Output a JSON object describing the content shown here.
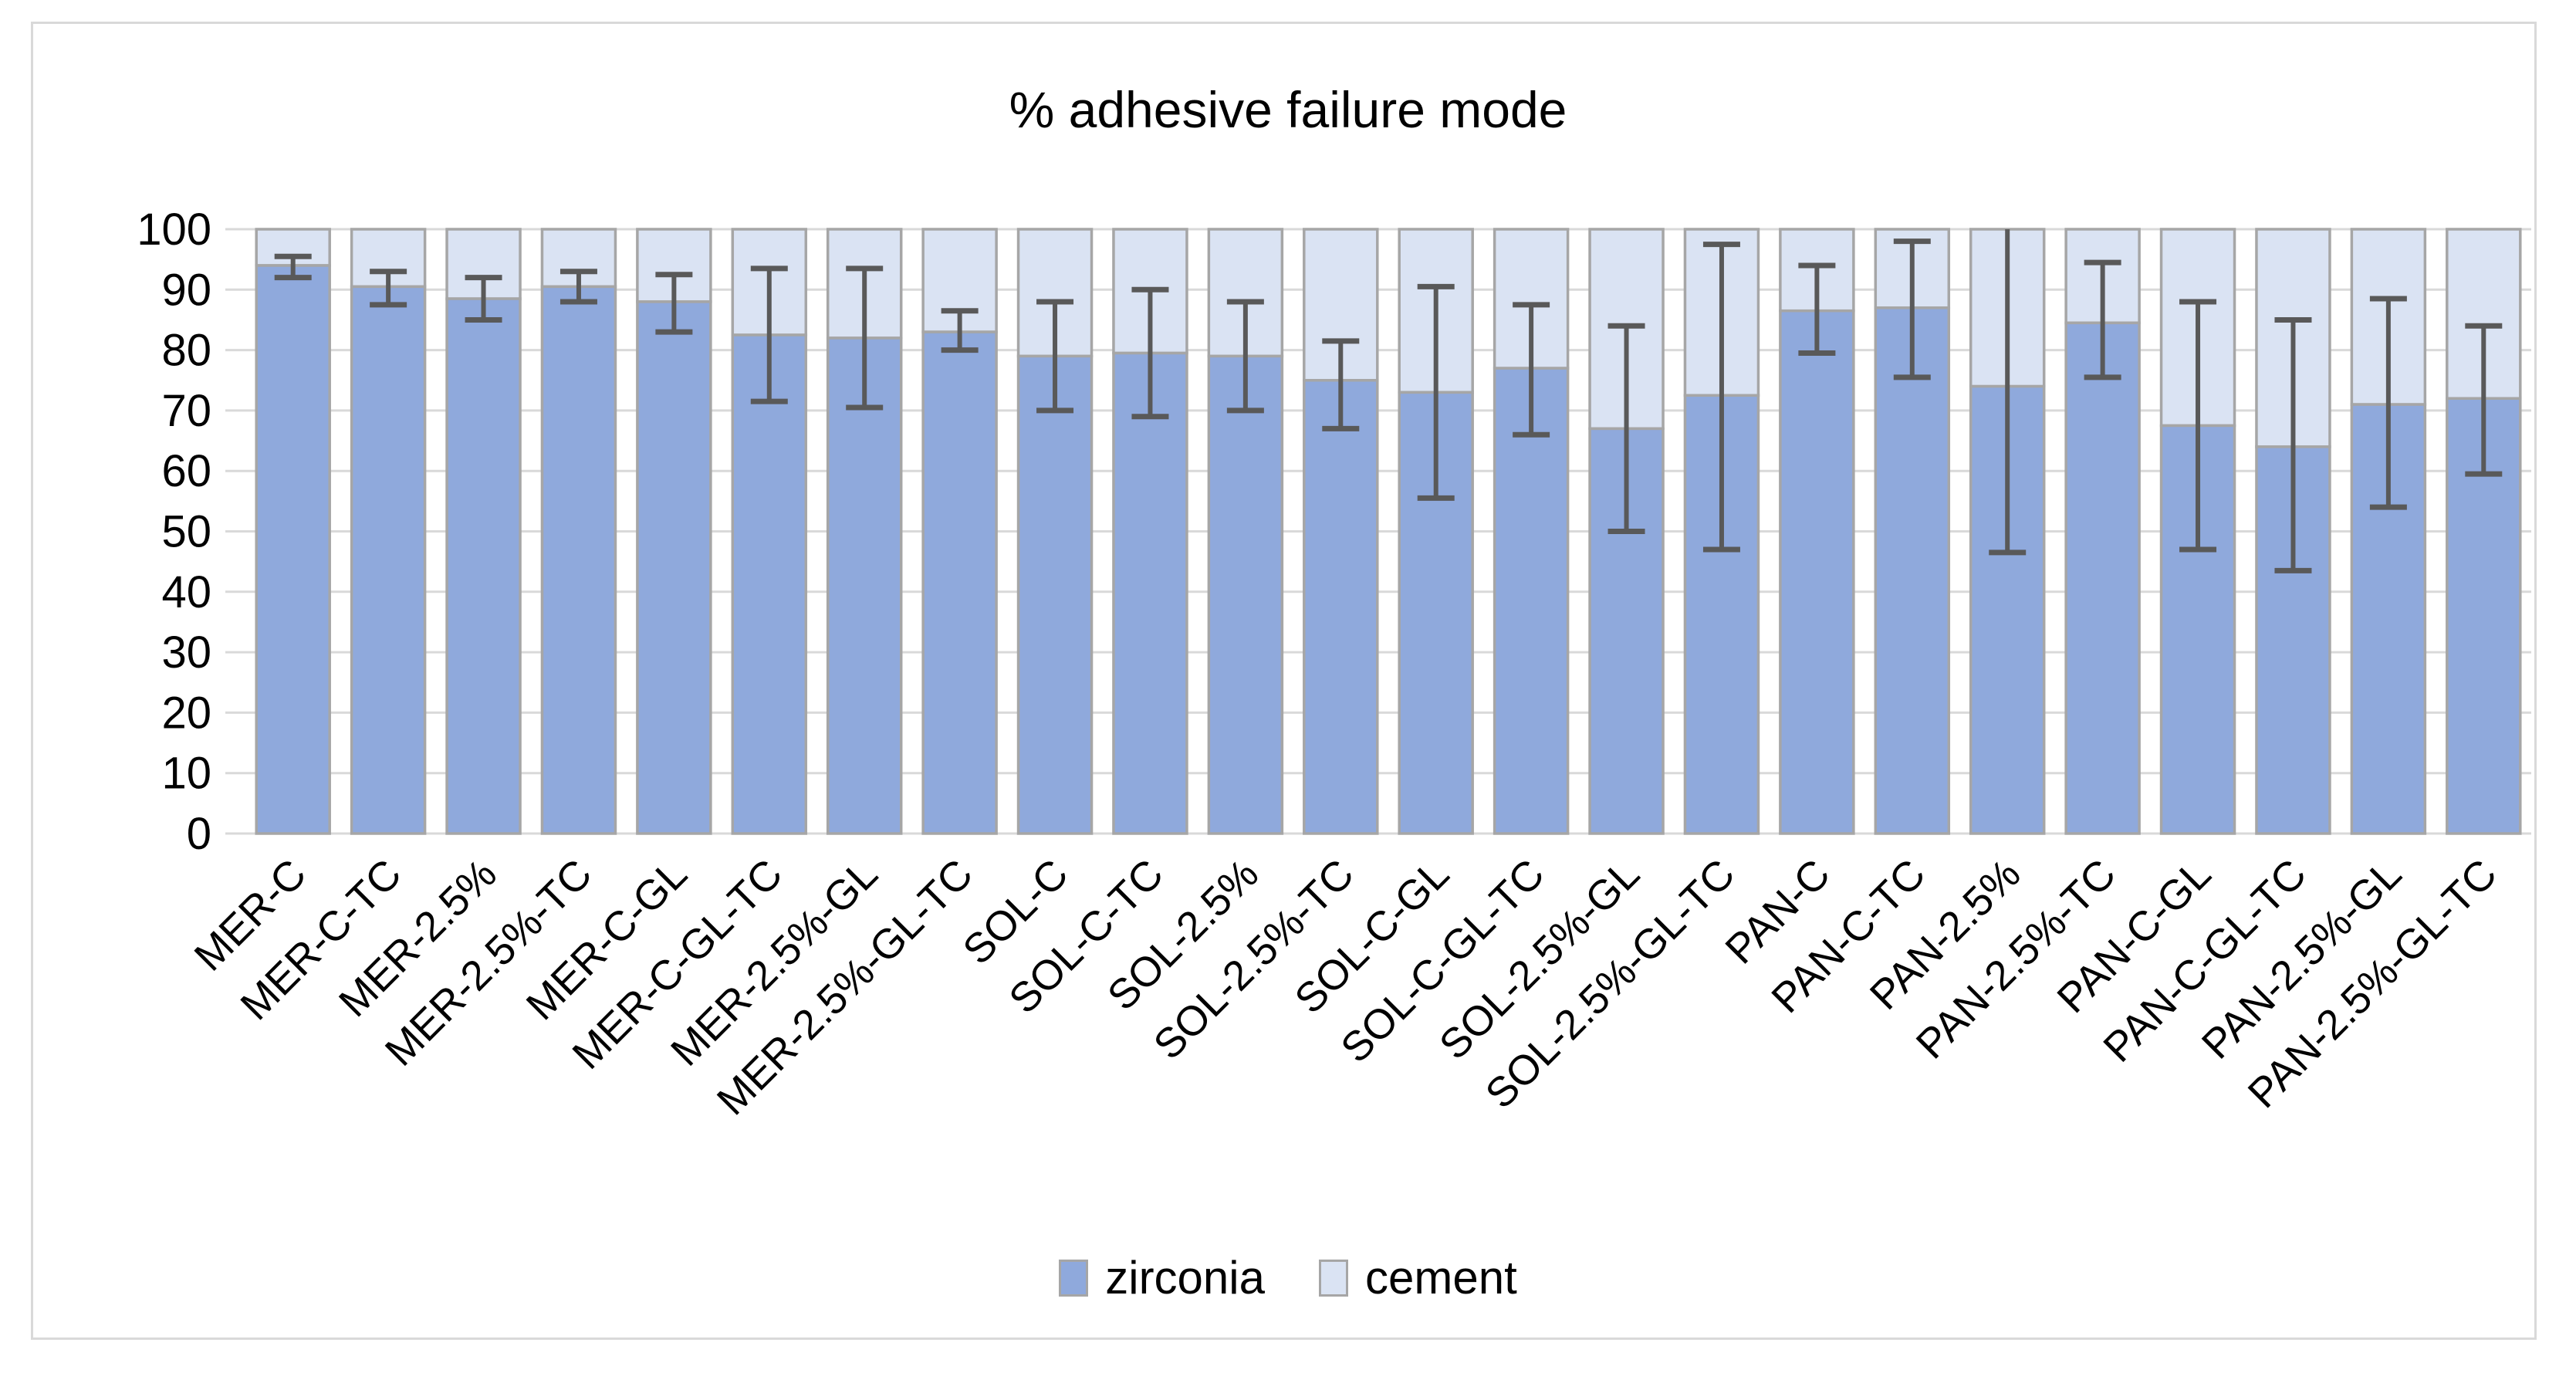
{
  "chart": {
    "title": "% adhesive failure mode",
    "legend": [
      {
        "label": "zirconia",
        "color": "#8FA9DC"
      },
      {
        "label": "cement",
        "color": "#DAE3F3"
      }
    ]
  },
  "chart_data": {
    "type": "bar",
    "stacked": true,
    "title": "% adhesive failure mode",
    "categories": [
      "MER-C",
      "MER-C-TC",
      "MER-2.5%",
      "MER-2.5%-TC",
      "MER-C-GL",
      "MER-C-GL-TC",
      "MER-2.5%-GL",
      "MER-2.5%-GL-TC",
      "SOL-C",
      "SOL-C-TC",
      "SOL-2.5%",
      "SOL-2.5%-TC",
      "SOL-C-GL",
      "SOL-C-GL-TC",
      "SOL-2.5%-GL",
      "SOL-2.5%-GL-TC",
      "PAN-C",
      "PAN-C-TC",
      "PAN-2.5%",
      "PAN-2.5%-TC",
      "PAN-C-GL",
      "PAN-C-GL-TC",
      "PAN-2.5%-GL",
      "PAN-2.5%-GL-TC"
    ],
    "series": [
      {
        "name": "zirconia",
        "color": "#8FA9DC",
        "values": [
          94,
          90.5,
          88.5,
          90.5,
          88,
          82.5,
          82,
          83,
          79,
          79.5,
          79,
          75,
          73,
          77,
          67,
          72.5,
          86.5,
          87,
          74,
          84.5,
          67.5,
          64,
          71,
          72
        ]
      },
      {
        "name": "cement",
        "color": "#DAE3F3",
        "values": [
          6,
          9.5,
          11.5,
          9.5,
          12,
          17.5,
          18,
          17,
          21,
          20.5,
          21,
          25,
          27,
          23,
          33,
          27.5,
          13.5,
          13,
          26,
          15.5,
          32.5,
          36,
          29,
          28
        ]
      }
    ],
    "error_bars": {
      "on_series": "zirconia",
      "low": [
        92,
        87.5,
        85,
        88,
        83,
        71.5,
        70.5,
        80,
        70,
        69,
        70,
        67,
        55.5,
        66,
        50,
        47,
        79.5,
        75.5,
        46.5,
        75.5,
        47,
        43.5,
        54,
        59.5
      ],
      "high": [
        95.5,
        93,
        92,
        93,
        92.5,
        93.5,
        93.5,
        86.5,
        88,
        90,
        88,
        81.5,
        90.5,
        87.5,
        84,
        97.5,
        94,
        98,
        101.5,
        94.5,
        88,
        85,
        88.5,
        84
      ],
      "note": "high values above 100 are clipped at the plot top without a cap"
    },
    "ylim": [
      0,
      100
    ],
    "yticks": [
      0,
      10,
      20,
      30,
      40,
      50,
      60,
      70,
      80,
      90,
      100
    ],
    "grid": true,
    "legend_position": "bottom",
    "x_label_rotation_deg": -45,
    "bar_outline_color": "#A6A6A6",
    "error_bar_color": "#595959",
    "gridline_color": "#D9D9D9",
    "tick_label_color": "#000000"
  }
}
